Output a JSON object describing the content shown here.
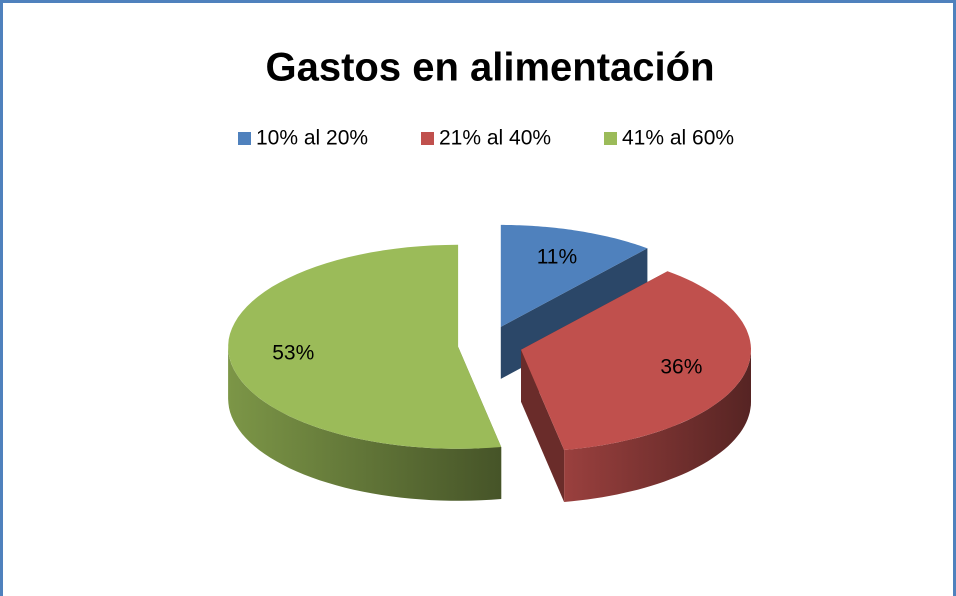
{
  "chart_data": {
    "type": "pie3d",
    "title": "Gastos en alimentación",
    "categories": [
      "10% al 20%",
      "21% al 40%",
      "41% al 60%"
    ],
    "values": [
      11,
      36,
      53
    ],
    "value_labels": [
      "11%",
      "36%",
      "53%"
    ],
    "colors": [
      "#4f81bd",
      "#c0504d",
      "#9bbb59"
    ],
    "legend": "top"
  }
}
